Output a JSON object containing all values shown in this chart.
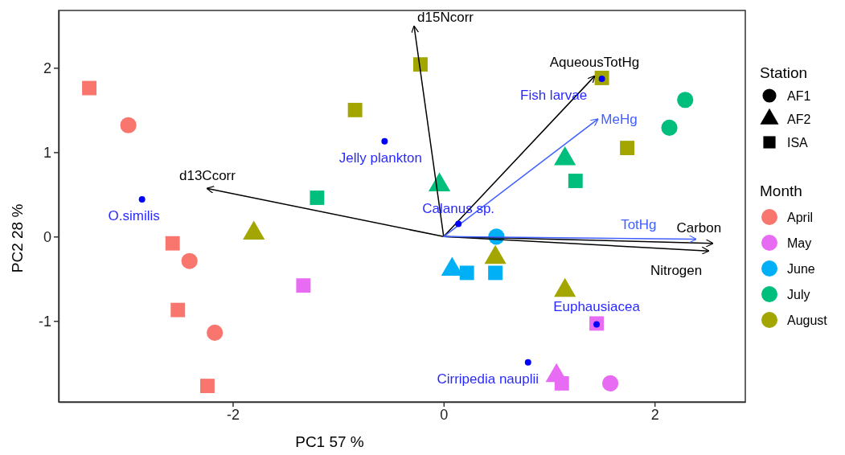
{
  "chart_data": {
    "type": "scatter",
    "xlabel": "PC1  57 %",
    "ylabel": "PC2  28 %",
    "xlim": [
      -3.65,
      2.86
    ],
    "ylim": [
      -1.96,
      2.68
    ],
    "xticks": [
      -2,
      0,
      2
    ],
    "yticks": [
      -1,
      0,
      1,
      2
    ],
    "legend": "right",
    "legend_title": "Month",
    "annotations": [
      "Station"
    ],
    "series": [
      {
        "name": "AF1",
        "color": "#000000",
        "marker": "circle"
      },
      {
        "name": "AF2",
        "color": "#000000",
        "marker": "triangle"
      },
      {
        "name": "ISA",
        "color": "#000000",
        "marker": "square"
      },
      {
        "name": "April",
        "color": "#f8766d",
        "marker": "circle"
      },
      {
        "name": "May",
        "color": "#e76bf3",
        "marker": "circle"
      },
      {
        "name": "June",
        "color": "#00b0f6",
        "marker": "circle"
      },
      {
        "name": "July",
        "color": "#00bf7d",
        "marker": "circle"
      },
      {
        "name": "August",
        "color": "#a3a500",
        "marker": "circle"
      },
      {
        "color": "#f8766d",
        "marker": "circle",
        "x": [
          -2.99,
          -2.41,
          -2.17
        ],
        "values": [
          1.32,
          -0.29,
          -1.14
        ]
      },
      {
        "color": "#f8766d",
        "marker": "square",
        "x": [
          -3.36,
          -2.57,
          -2.52,
          -2.24
        ],
        "values": [
          1.76,
          -0.08,
          -0.87,
          -1.77
        ]
      },
      {
        "color": "#e76bf3",
        "marker": "square",
        "x": [
          -1.33,
          1.45,
          1.12
        ],
        "values": [
          -0.58,
          -1.03,
          -1.74
        ]
      },
      {
        "color": "#e76bf3",
        "marker": "triangle",
        "x": [
          1.07
        ],
        "values": [
          -1.65
        ]
      },
      {
        "color": "#e76bf3",
        "marker": "circle",
        "x": [
          1.58
        ],
        "values": [
          -1.74
        ]
      },
      {
        "color": "#00b0f6",
        "marker": "circle",
        "x": [
          0.5
        ],
        "values": [
          0.0
        ]
      },
      {
        "color": "#00b0f6",
        "marker": "triangle",
        "x": [
          0.08
        ],
        "values": [
          -0.39
        ]
      },
      {
        "color": "#00b0f6",
        "marker": "square",
        "x": [
          0.22,
          0.49
        ],
        "values": [
          -0.43,
          -0.43
        ]
      },
      {
        "color": "#00bf7d",
        "marker": "square",
        "x": [
          -1.2,
          1.25
        ],
        "values": [
          0.46,
          0.66
        ]
      },
      {
        "color": "#00bf7d",
        "marker": "triangle",
        "x": [
          -0.04,
          1.15
        ],
        "values": [
          0.61,
          0.92
        ]
      },
      {
        "color": "#00bf7d",
        "marker": "circle",
        "x": [
          2.14,
          2.29
        ],
        "values": [
          1.29,
          1.62
        ]
      },
      {
        "color": "#a3a500",
        "marker": "square",
        "x": [
          -0.22,
          -0.84,
          1.5,
          1.74
        ],
        "values": [
          2.04,
          1.5,
          1.88,
          1.05
        ]
      },
      {
        "color": "#a3a500",
        "marker": "triangle",
        "x": [
          -1.8,
          0.49,
          1.15
        ],
        "values": [
          0.04,
          -0.25,
          -0.64
        ]
      },
      {
        "type": "line",
        "name": "d15Ncorr",
        "color": "#000000",
        "x": [
          0,
          -0.28
        ],
        "values": [
          0,
          2.49
        ]
      },
      {
        "type": "line",
        "name": "d13Ccorr",
        "color": "#000000",
        "x": [
          0,
          -2.24
        ],
        "values": [
          0,
          0.57
        ]
      },
      {
        "type": "line",
        "name": "AqueousTotHg",
        "color": "#000000",
        "x": [
          0,
          1.43
        ],
        "values": [
          0,
          1.9
        ]
      },
      {
        "type": "line",
        "name": "Carbon",
        "color": "#000000",
        "x": [
          0,
          2.55
        ],
        "values": [
          0,
          -0.08
        ]
      },
      {
        "type": "line",
        "name": "Nitrogen",
        "color": "#000000",
        "x": [
          0,
          2.51
        ],
        "values": [
          0,
          -0.17
        ]
      },
      {
        "type": "line",
        "name": "MeHg",
        "color": "#4060ff",
        "x": [
          0,
          1.46
        ],
        "values": [
          0,
          1.39
        ]
      },
      {
        "type": "line",
        "name": "TotHg",
        "color": "#4060ff",
        "x": [
          0,
          2.39
        ],
        "values": [
          0,
          -0.03
        ]
      },
      {
        "color": "#0000ff",
        "marker": "circle",
        "x": [
          -2.86,
          -0.56,
          0.14,
          1.5,
          1.45,
          0.8
        ],
        "values": [
          0.44,
          1.13,
          0.15,
          1.87,
          -1.04,
          -1.49
        ],
        "value_labels": [
          "O.similis",
          "Jelly plankton",
          "Calanus sp.",
          "Fish larvae",
          "Euphausiacea",
          "Cirripedia nauplii"
        ]
      }
    ]
  }
}
